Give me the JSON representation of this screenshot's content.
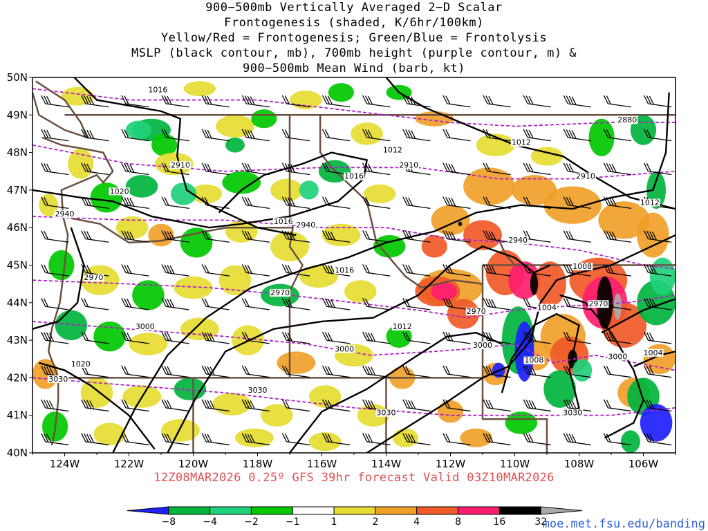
{
  "title_lines": [
    "900−500mb Vertically Averaged 2−D Scalar",
    "Frontogenesis (shaded, K/6hr/100km)",
    "Yellow/Red = Frontogenesis;  Green/Blue = Frontolysis",
    "MSLP (black contour, mb), 700mb height (purple contour, m) &",
    "900−500mb Mean Wind (barb, kt)"
  ],
  "valid_line": "12Z08MAR2026 0.25º GFS 39hr forecast Valid 03Z10MAR2026",
  "credit": "moe.met.fsu.edu/banding",
  "chart_data": {
    "type": "heatmap",
    "projection": "lat-lon",
    "xlim": [
      -125,
      -105
    ],
    "ylim": [
      40,
      50
    ],
    "x_ticks": [
      "124W",
      "122W",
      "120W",
      "118W",
      "116W",
      "114W",
      "112W",
      "110W",
      "108W",
      "106W"
    ],
    "y_ticks": [
      "50N",
      "49N",
      "48N",
      "47N",
      "46N",
      "45N",
      "44N",
      "43N",
      "42N",
      "41N",
      "40N"
    ],
    "colorbar": {
      "labels": [
        "−8",
        "−4",
        "−2",
        "−1",
        "1",
        "2",
        "4",
        "8",
        "16",
        "32"
      ],
      "colors": [
        "#2020ff",
        "#00b43c",
        "#1fd07a",
        "#00c800",
        "#ffffff",
        "#e6dc32",
        "#f0a028",
        "#f05a28",
        "#ff1e6e",
        "#000000",
        "#aaaaaa"
      ]
    },
    "mslp_contour_labels": [
      "1016",
      "1020",
      "1016",
      "1012",
      "1016",
      "1012",
      "1016",
      "1012",
      "1008",
      "1004",
      "1004",
      "1020",
      "1008",
      "1012"
    ],
    "height_contour_labels": [
      "2880",
      "2910",
      "2910",
      "2910",
      "2940",
      "2940",
      "2940",
      "2970",
      "2970",
      "2970",
      "2970",
      "3000",
      "3000",
      "3000",
      "3000",
      "3030",
      "3030",
      "3030",
      "3030"
    ],
    "frontogenesis_max_region": "eastern Idaho / western Wyoming, exceeding 32",
    "frontolysis_min_region": "western Wyoming / northeast Colorado, below −8"
  }
}
